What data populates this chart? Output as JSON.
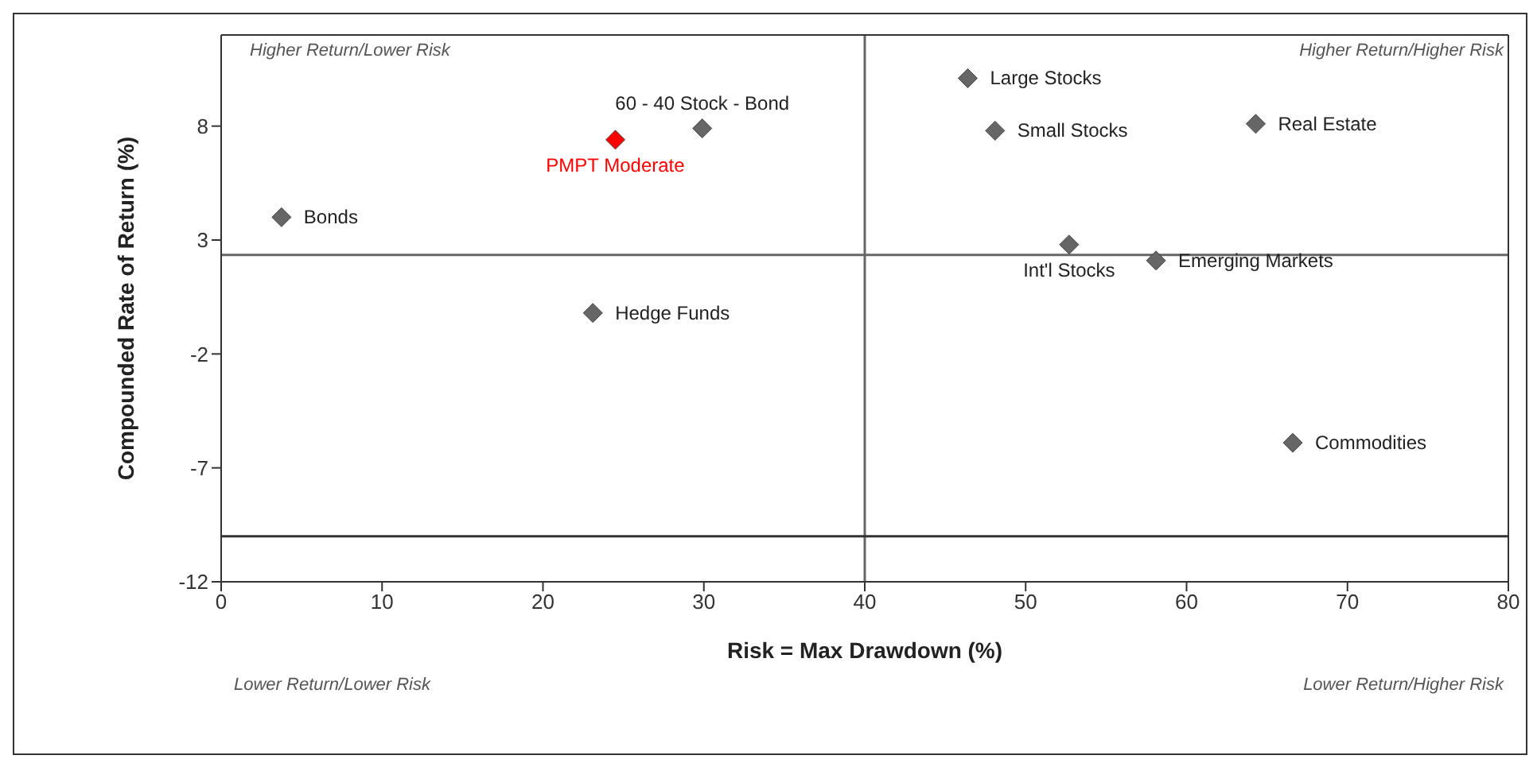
{
  "chart_data": {
    "type": "scatter",
    "xlabel": "Risk = Max Drawdown (%)",
    "ylabel": "Compounded Rate of Return (%)",
    "xlim": [
      0,
      80
    ],
    "ylim": [
      -12,
      12
    ],
    "xticks": [
      0,
      10,
      20,
      30,
      40,
      50,
      60,
      70,
      80
    ],
    "yticks": [
      -12,
      -7,
      -2,
      3,
      8
    ],
    "legend": false,
    "marker": "diamond",
    "ref_lines": [
      {
        "axis": "x",
        "value": 40,
        "color": "#666666"
      },
      {
        "axis": "y",
        "value": 2.35,
        "color": "#666666"
      },
      {
        "axis": "y",
        "value": -10,
        "color": "#333333"
      }
    ],
    "annotations": [
      "Higher Return/Lower Risk",
      "Higher Return/Higher Risk",
      "Lower Return/Lower Risk",
      "Lower Return/Higher Risk"
    ],
    "series": [
      {
        "name": "Bonds",
        "color": "#666666",
        "x": [
          3.75
        ],
        "values": [
          4.0
        ]
      },
      {
        "name": "PMPT Moderate",
        "color": "#ff0000",
        "x": [
          24.5
        ],
        "values": [
          7.4
        ]
      },
      {
        "name": "60 - 40 Stock - Bond",
        "color": "#666666",
        "x": [
          29.9
        ],
        "values": [
          7.9
        ]
      },
      {
        "name": "Hedge Funds",
        "color": "#666666",
        "x": [
          23.1
        ],
        "values": [
          -0.2
        ]
      },
      {
        "name": "Large Stocks",
        "color": "#666666",
        "x": [
          46.4
        ],
        "values": [
          10.1
        ]
      },
      {
        "name": "Small Stocks",
        "color": "#666666",
        "x": [
          48.1
        ],
        "values": [
          7.8
        ]
      },
      {
        "name": "Real Estate",
        "color": "#666666",
        "x": [
          64.3
        ],
        "values": [
          8.1
        ]
      },
      {
        "name": "Int'l Stocks",
        "color": "#666666",
        "x": [
          52.7
        ],
        "values": [
          2.8
        ]
      },
      {
        "name": "Emerging Markets",
        "color": "#666666",
        "x": [
          58.1
        ],
        "values": [
          2.1
        ]
      },
      {
        "name": "Commodities",
        "color": "#666666",
        "x": [
          66.6
        ],
        "values": [
          -5.9
        ]
      }
    ]
  }
}
